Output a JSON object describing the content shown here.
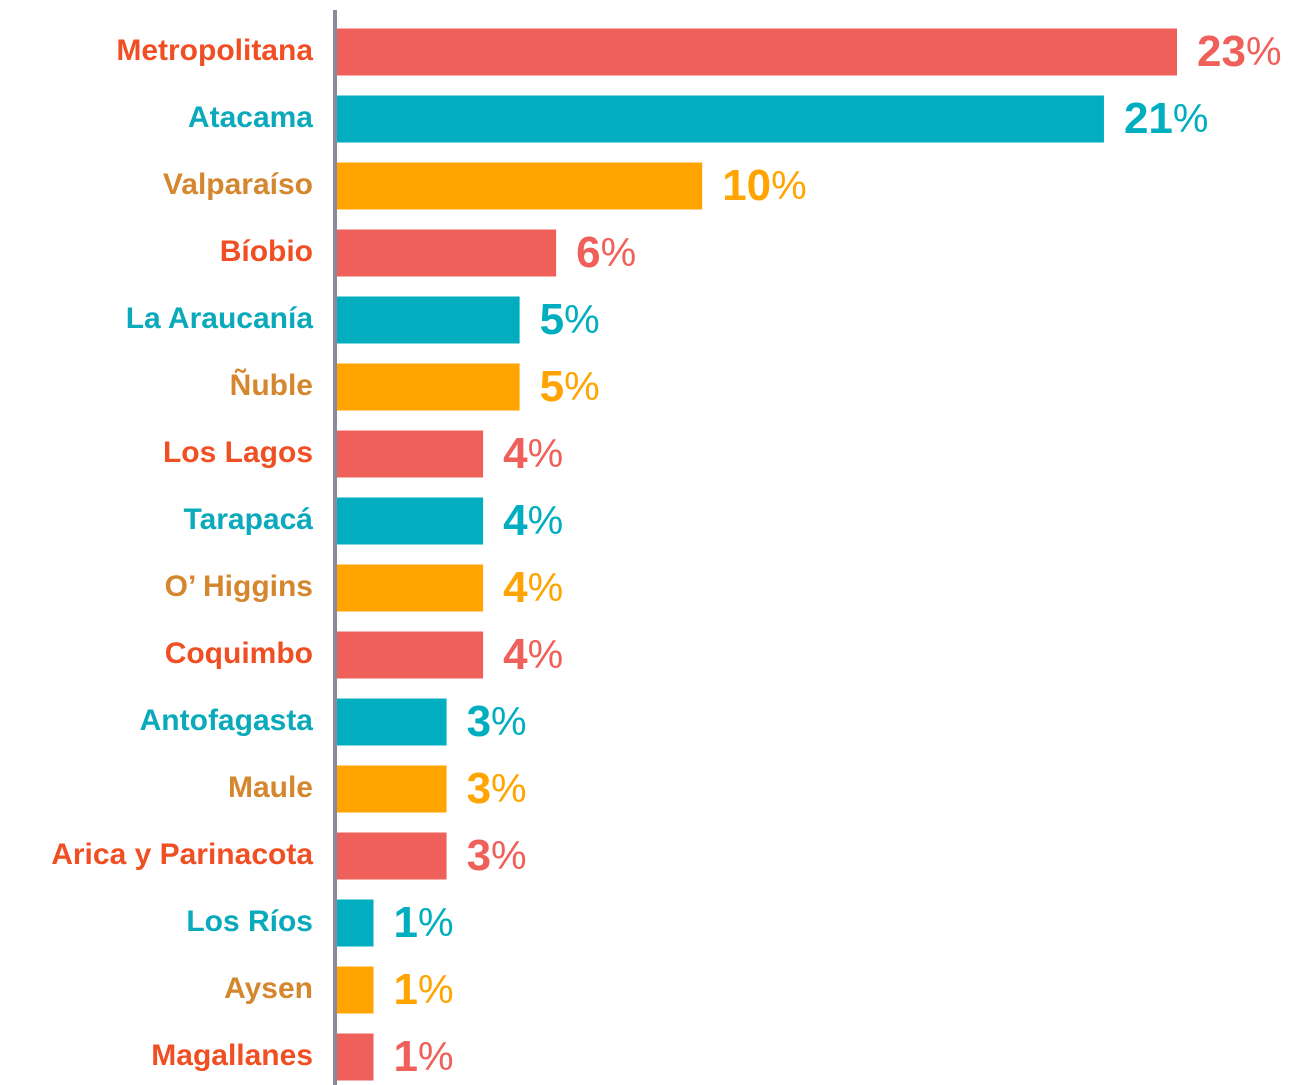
{
  "chart_data": {
    "type": "bar",
    "orientation": "horizontal",
    "categories": [
      "Metropolitana",
      "Atacama",
      "Valparaíso",
      "Bíobio",
      "La Araucanía",
      "Ñuble",
      "Los Lagos",
      "Tarapacá",
      "O’ Higgins",
      "Coquimbo",
      "Antofagasta",
      "Maule",
      "Arica y Parinacota",
      "Los Ríos",
      "Aysen",
      "Magallanes"
    ],
    "values": [
      23,
      21,
      10,
      6,
      5,
      5,
      4,
      4,
      4,
      4,
      3,
      3,
      3,
      1,
      1,
      1
    ],
    "value_suffix": "%",
    "colors": [
      "#f0605a",
      "#00aebf",
      "#ffa400"
    ],
    "label_colors": [
      "#f04e23",
      "#0aa9bb",
      "#d4872f"
    ]
  }
}
